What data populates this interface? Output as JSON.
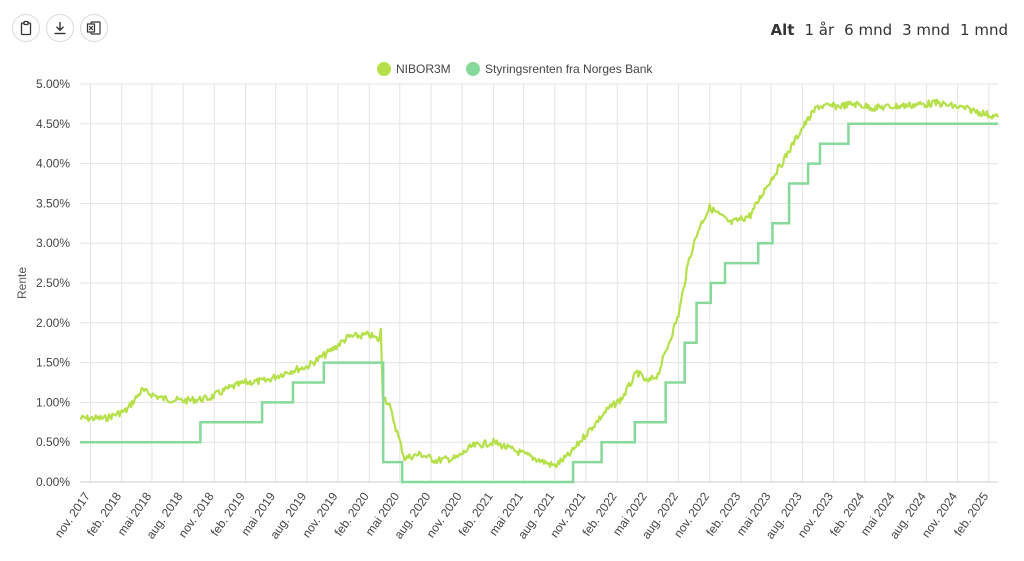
{
  "toolbar": {
    "buttons": [
      {
        "name": "copy-button",
        "icon": "clipboard-icon"
      },
      {
        "name": "download-button",
        "icon": "download-icon"
      },
      {
        "name": "excel-export-button",
        "icon": "excel-icon"
      }
    ]
  },
  "range_selector": {
    "options": [
      "Alt",
      "1 år",
      "6 mnd",
      "3 mnd",
      "1 mnd"
    ],
    "active": "Alt"
  },
  "chart_data": {
    "type": "line",
    "title": "",
    "xlabel": "",
    "ylabel": "Rente",
    "ylim": [
      0,
      5
    ],
    "xlim": [
      "2017-10-01",
      "2025-02-28"
    ],
    "grid": true,
    "legend_position": "top-center",
    "y_ticks": [
      "0.00%",
      "0.50%",
      "1.00%",
      "1.50%",
      "2.00%",
      "2.50%",
      "3.00%",
      "3.50%",
      "4.00%",
      "4.50%",
      "5.00%"
    ],
    "x_ticks": [
      {
        "date": "2017-11-01",
        "label": "nov. 2017"
      },
      {
        "date": "2018-02-01",
        "label": "feb. 2018"
      },
      {
        "date": "2018-05-01",
        "label": "mai 2018"
      },
      {
        "date": "2018-08-01",
        "label": "aug. 2018"
      },
      {
        "date": "2018-11-01",
        "label": "nov. 2018"
      },
      {
        "date": "2019-02-01",
        "label": "feb. 2019"
      },
      {
        "date": "2019-05-01",
        "label": "mai 2019"
      },
      {
        "date": "2019-08-01",
        "label": "aug. 2019"
      },
      {
        "date": "2019-11-01",
        "label": "nov. 2019"
      },
      {
        "date": "2020-02-01",
        "label": "feb. 2020"
      },
      {
        "date": "2020-05-01",
        "label": "mai 2020"
      },
      {
        "date": "2020-08-01",
        "label": "aug. 2020"
      },
      {
        "date": "2020-11-01",
        "label": "nov. 2020"
      },
      {
        "date": "2021-02-01",
        "label": "feb. 2021"
      },
      {
        "date": "2021-05-01",
        "label": "mai 2021"
      },
      {
        "date": "2021-08-01",
        "label": "aug. 2021"
      },
      {
        "date": "2021-11-01",
        "label": "nov. 2021"
      },
      {
        "date": "2022-02-01",
        "label": "feb. 2022"
      },
      {
        "date": "2022-05-01",
        "label": "mai 2022"
      },
      {
        "date": "2022-08-01",
        "label": "aug. 2022"
      },
      {
        "date": "2022-11-01",
        "label": "nov. 2022"
      },
      {
        "date": "2023-02-01",
        "label": "feb. 2023"
      },
      {
        "date": "2023-05-01",
        "label": "mai 2023"
      },
      {
        "date": "2023-08-01",
        "label": "aug. 2023"
      },
      {
        "date": "2023-11-01",
        "label": "nov. 2023"
      },
      {
        "date": "2024-02-01",
        "label": "feb. 2024"
      },
      {
        "date": "2024-05-01",
        "label": "mai 2024"
      },
      {
        "date": "2024-08-01",
        "label": "aug. 2024"
      },
      {
        "date": "2024-11-01",
        "label": "nov. 2024"
      },
      {
        "date": "2025-02-01",
        "label": "feb. 2025"
      }
    ],
    "series": [
      {
        "name": "NIBOR3M",
        "color": "#b5e04a",
        "points": [
          [
            "2017-10-01",
            0.8
          ],
          [
            "2017-12-15",
            0.8
          ],
          [
            "2018-02-15",
            0.9
          ],
          [
            "2018-04-01",
            1.15
          ],
          [
            "2018-06-01",
            1.05
          ],
          [
            "2018-08-01",
            1.02
          ],
          [
            "2018-10-15",
            1.05
          ],
          [
            "2018-12-15",
            1.18
          ],
          [
            "2019-02-01",
            1.25
          ],
          [
            "2019-04-01",
            1.27
          ],
          [
            "2019-06-01",
            1.38
          ],
          [
            "2019-08-01",
            1.45
          ],
          [
            "2019-10-01",
            1.62
          ],
          [
            "2019-12-01",
            1.82
          ],
          [
            "2020-02-01",
            1.85
          ],
          [
            "2020-03-01",
            1.78
          ],
          [
            "2020-03-06",
            1.9
          ],
          [
            "2020-03-12",
            1.1
          ],
          [
            "2020-04-01",
            0.95
          ],
          [
            "2020-05-15",
            0.3
          ],
          [
            "2020-07-01",
            0.35
          ],
          [
            "2020-08-15",
            0.27
          ],
          [
            "2020-10-15",
            0.3
          ],
          [
            "2020-12-01",
            0.45
          ],
          [
            "2021-02-01",
            0.5
          ],
          [
            "2021-04-01",
            0.4
          ],
          [
            "2021-06-01",
            0.3
          ],
          [
            "2021-08-01",
            0.2
          ],
          [
            "2021-09-15",
            0.35
          ],
          [
            "2021-11-01",
            0.6
          ],
          [
            "2022-01-01",
            0.9
          ],
          [
            "2022-02-15",
            1.05
          ],
          [
            "2022-04-01",
            1.38
          ],
          [
            "2022-05-01",
            1.25
          ],
          [
            "2022-06-01",
            1.35
          ],
          [
            "2022-08-01",
            2.1
          ],
          [
            "2022-09-01",
            2.8
          ],
          [
            "2022-10-01",
            3.2
          ],
          [
            "2022-11-01",
            3.45
          ],
          [
            "2023-01-01",
            3.25
          ],
          [
            "2023-03-01",
            3.35
          ],
          [
            "2023-04-15",
            3.7
          ],
          [
            "2023-06-01",
            4.0
          ],
          [
            "2023-08-01",
            4.45
          ],
          [
            "2023-09-15",
            4.72
          ],
          [
            "2023-11-15",
            4.72
          ],
          [
            "2024-01-01",
            4.75
          ],
          [
            "2024-03-01",
            4.7
          ],
          [
            "2024-06-01",
            4.73
          ],
          [
            "2024-09-01",
            4.76
          ],
          [
            "2024-11-15",
            4.7
          ],
          [
            "2025-01-01",
            4.65
          ],
          [
            "2025-02-28",
            4.58
          ]
        ]
      },
      {
        "name": "Styringsrenten fra Norges Bank",
        "color": "#86d99a",
        "steps": [
          [
            "2017-10-01",
            0.5
          ],
          [
            "2018-09-21",
            0.75
          ],
          [
            "2019-03-22",
            1.0
          ],
          [
            "2019-06-21",
            1.25
          ],
          [
            "2019-09-20",
            1.5
          ],
          [
            "2020-03-13",
            0.25
          ],
          [
            "2020-05-08",
            0.0
          ],
          [
            "2021-09-24",
            0.25
          ],
          [
            "2021-12-17",
            0.5
          ],
          [
            "2022-03-25",
            0.75
          ],
          [
            "2022-06-24",
            1.25
          ],
          [
            "2022-08-19",
            1.75
          ],
          [
            "2022-09-23",
            2.25
          ],
          [
            "2022-11-04",
            2.5
          ],
          [
            "2022-12-16",
            2.75
          ],
          [
            "2023-03-24",
            3.0
          ],
          [
            "2023-05-05",
            3.25
          ],
          [
            "2023-06-23",
            3.75
          ],
          [
            "2023-08-18",
            4.0
          ],
          [
            "2023-09-22",
            4.25
          ],
          [
            "2023-12-15",
            4.5
          ],
          [
            "2025-02-28",
            4.5
          ]
        ]
      }
    ]
  }
}
